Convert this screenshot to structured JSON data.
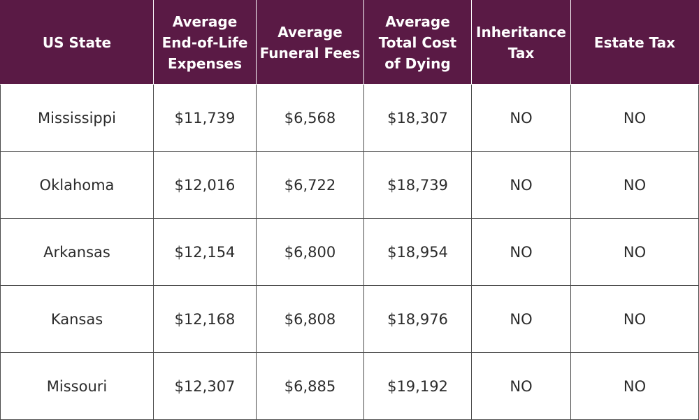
{
  "chart_data": {
    "type": "table",
    "columns": [
      "US State",
      "Average\nEnd-of-Life\nExpenses",
      "Average\nFuneral Fees",
      "Average\nTotal Cost\nof Dying",
      "Inheritance\nTax",
      "Estate Tax"
    ],
    "rows": [
      [
        "Mississippi",
        "$11,739",
        "$6,568",
        "$18,307",
        "NO",
        "NO"
      ],
      [
        "Oklahoma",
        "$12,016",
        "$6,722",
        "$18,739",
        "NO",
        "NO"
      ],
      [
        "Arkansas",
        "$12,154",
        "$6,800",
        "$18,954",
        "NO",
        "NO"
      ],
      [
        "Kansas",
        "$12,168",
        "$6,808",
        "$18,976",
        "NO",
        "NO"
      ],
      [
        "Missouri",
        "$12,307",
        "$6,885",
        "$19,192",
        "NO",
        "NO"
      ]
    ]
  },
  "colors": {
    "header_background": "#5a1a45",
    "header_text": "#ffffff",
    "body_text": "#2b2b2b",
    "grid": "#4a4a4a"
  }
}
